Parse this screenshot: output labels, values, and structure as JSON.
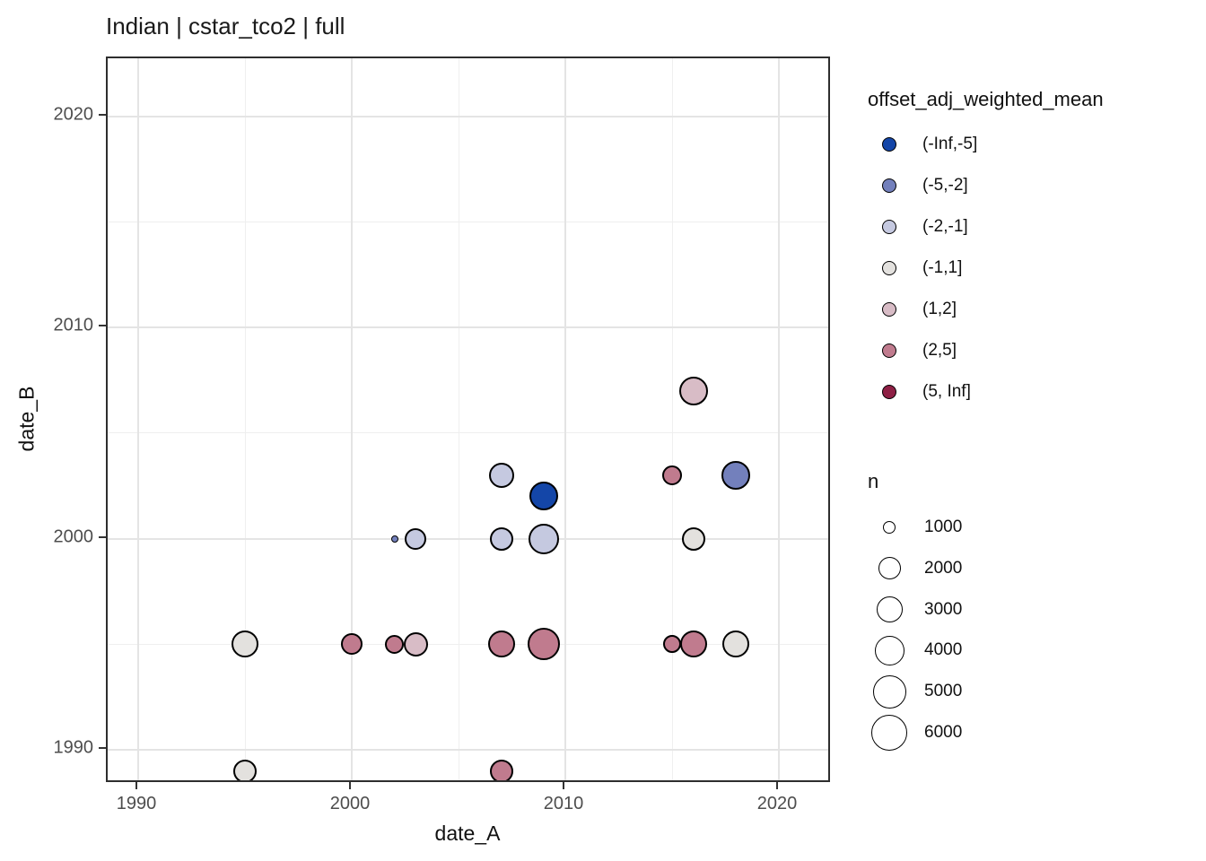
{
  "page": {
    "title": "Indian | cstar_tco2 | full"
  },
  "chart_data": {
    "type": "scatter",
    "title": "Indian | cstar_tco2 | full",
    "xlabel": "date_A",
    "ylabel": "date_B",
    "x_ticks": [
      1990,
      2000,
      2010,
      2020
    ],
    "y_ticks": [
      1990,
      2000,
      2010,
      2020
    ],
    "x_minor_ticks": [
      1995,
      2005,
      2015
    ],
    "y_minor_ticks": [
      1995,
      2005,
      2015
    ],
    "xlim": [
      1988.6,
      2022.4
    ],
    "ylim": [
      1988.3,
      2022.7
    ],
    "grid": "major-and-minor",
    "legend_color": {
      "title": "offset_adj_weighted_mean",
      "entries": [
        {
          "label": "(-Inf,-5]",
          "color": "#1446a8"
        },
        {
          "label": "(-5,-2]",
          "color": "#7380bc"
        },
        {
          "label": "(-2,-1]",
          "color": "#c5c9e0"
        },
        {
          "label": "(-1,1]",
          "color": "#e3e1de"
        },
        {
          "label": "(1,2]",
          "color": "#d8bcc6"
        },
        {
          "label": "(2,5]",
          "color": "#c07b8e"
        },
        {
          "label": "(5, Inf]",
          "color": "#8e2045"
        }
      ]
    },
    "legend_size": {
      "title": "n",
      "entries": [
        {
          "label": "1000",
          "r": 7
        },
        {
          "label": "2000",
          "r": 12.5
        },
        {
          "label": "3000",
          "r": 14.5
        },
        {
          "label": "4000",
          "r": 16.5
        },
        {
          "label": "5000",
          "r": 18.5
        },
        {
          "label": "6000",
          "r": 20
        }
      ]
    },
    "points": [
      {
        "date_A": 1995,
        "date_B": 1989,
        "n": 2800,
        "r": 13,
        "bucket": "(-1,1]"
      },
      {
        "date_A": 1995,
        "date_B": 1995,
        "n": 3500,
        "r": 15,
        "bucket": "(-1,1]"
      },
      {
        "date_A": 2000,
        "date_B": 1995,
        "n": 2400,
        "r": 12,
        "bucket": "(2,5]"
      },
      {
        "date_A": 2002,
        "date_B": 1995,
        "n": 1900,
        "r": 10.5,
        "bucket": "(2,5]"
      },
      {
        "date_A": 2002,
        "date_B": 2000,
        "n": 300,
        "r": 4,
        "bucket": "(-5,-2]"
      },
      {
        "date_A": 2003,
        "date_B": 1995,
        "n": 2900,
        "r": 13.5,
        "bucket": "(1,2]"
      },
      {
        "date_A": 2003,
        "date_B": 2000,
        "n": 2400,
        "r": 12,
        "bucket": "(-2,-1]"
      },
      {
        "date_A": 2007,
        "date_B": 1989,
        "n": 2800,
        "r": 13,
        "bucket": "(2,5]"
      },
      {
        "date_A": 2007,
        "date_B": 1995,
        "n": 3500,
        "r": 15,
        "bucket": "(2,5]"
      },
      {
        "date_A": 2007,
        "date_B": 2000,
        "n": 2800,
        "r": 13,
        "bucket": "(-2,-1]"
      },
      {
        "date_A": 2007,
        "date_B": 2003,
        "n": 3100,
        "r": 14,
        "bucket": "(-2,-1]"
      },
      {
        "date_A": 2009,
        "date_B": 1995,
        "n": 5000,
        "r": 18,
        "bucket": "(2,5]"
      },
      {
        "date_A": 2009,
        "date_B": 2000,
        "n": 4500,
        "r": 17,
        "bucket": "(-2,-1]"
      },
      {
        "date_A": 2009,
        "date_B": 2002,
        "n": 4000,
        "r": 16,
        "bucket": "(-Inf,-5]"
      },
      {
        "date_A": 2015,
        "date_B": 1995,
        "n": 1800,
        "r": 10,
        "bucket": "(2,5]"
      },
      {
        "date_A": 2015,
        "date_B": 2003,
        "n": 2100,
        "r": 11,
        "bucket": "(2,5]"
      },
      {
        "date_A": 2016,
        "date_B": 1995,
        "n": 3500,
        "r": 15,
        "bucket": "(2,5]"
      },
      {
        "date_A": 2016,
        "date_B": 2000,
        "n": 2800,
        "r": 13,
        "bucket": "(-1,1]"
      },
      {
        "date_A": 2016,
        "date_B": 2007,
        "n": 4000,
        "r": 16,
        "bucket": "(1,2]"
      },
      {
        "date_A": 2018,
        "date_B": 1995,
        "n": 3500,
        "r": 15,
        "bucket": "(-1,1]"
      },
      {
        "date_A": 2018,
        "date_B": 2003,
        "n": 4000,
        "r": 16,
        "bucket": "(-5,-2]"
      }
    ]
  }
}
